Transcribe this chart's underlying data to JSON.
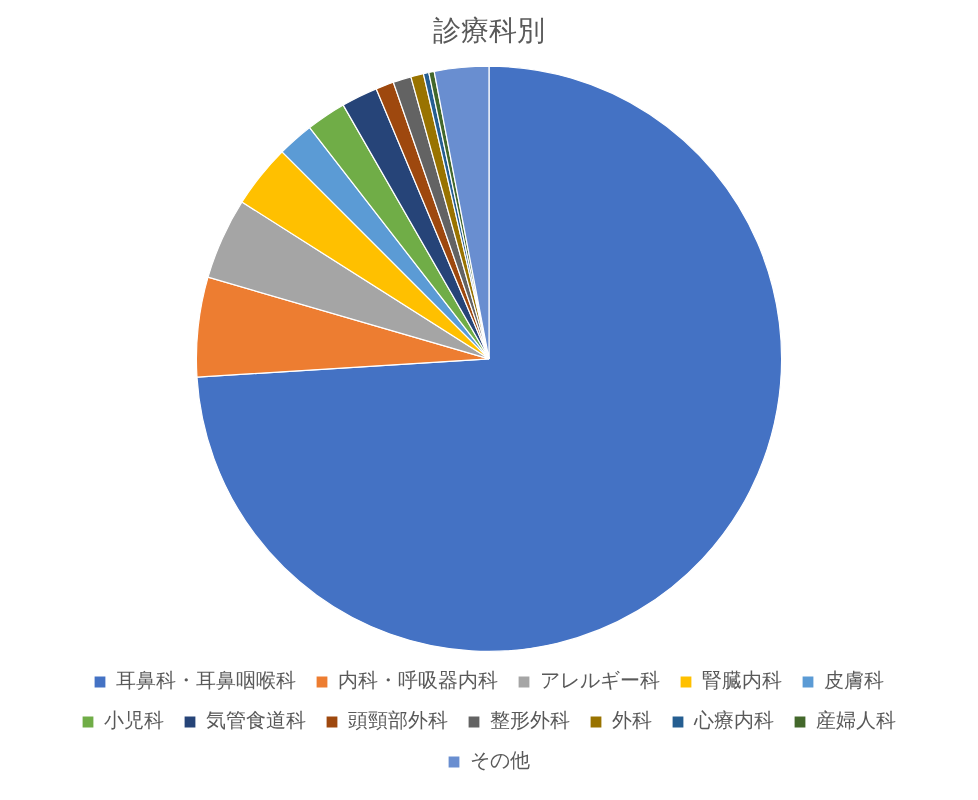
{
  "chart_data": {
    "type": "pie",
    "title": "診療科別",
    "categories": [
      "耳鼻科・耳鼻咽喉科",
      "内科・呼吸器内科",
      "アレルギー科",
      "腎臓内科",
      "皮膚科",
      "小児科",
      "気管食道科",
      "頭頸部外科",
      "整形外科",
      "外科",
      "心療内科",
      "産婦人科",
      "その他"
    ],
    "values": [
      74,
      5.5,
      4.5,
      3.5,
      2,
      2.2,
      2,
      1,
      1,
      0.7,
      0.3,
      0.3,
      3
    ],
    "colors": [
      "#4472c4",
      "#ed7d31",
      "#a5a5a5",
      "#ffc000",
      "#5b9bd5",
      "#70ad47",
      "#264478",
      "#9e480e",
      "#636363",
      "#997300",
      "#255e91",
      "#43682b",
      "#698ed0"
    ],
    "legend": "bottom"
  }
}
